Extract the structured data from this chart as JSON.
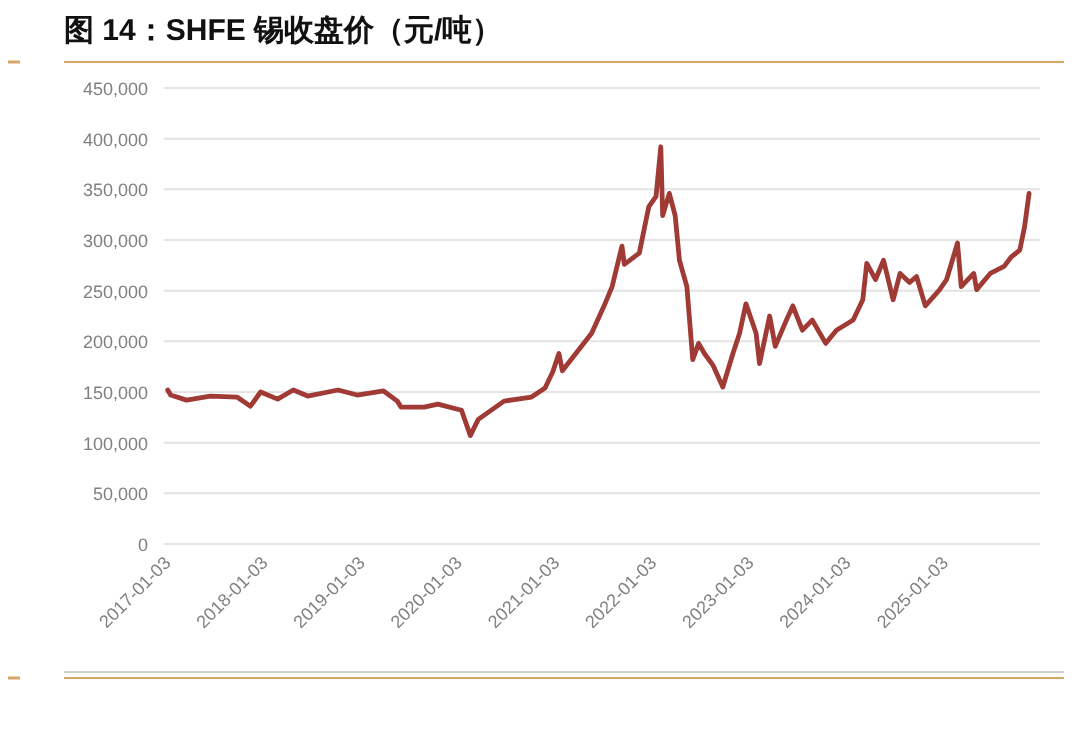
{
  "chart_data": {
    "type": "line",
    "title": "图 14：SHFE 锡收盘价（元/吨）",
    "x": [
      "2017-01-03",
      "2017-01-14",
      "2017-03-15",
      "2017-06-12",
      "2017-09-20",
      "2017-11-10",
      "2017-12-18",
      "2018-02-20",
      "2018-04-20",
      "2018-06-13",
      "2018-10-05",
      "2018-12-16",
      "2019-03-25",
      "2019-05-16",
      "2019-05-30",
      "2019-08-25",
      "2019-10-15",
      "2020-01-12",
      "2020-02-14",
      "2020-03-15",
      "2020-06-20",
      "2020-10-01",
      "2020-11-21",
      "2020-12-20",
      "2021-01-12",
      "2021-01-25",
      "2021-05-15",
      "2021-07-01",
      "2021-07-31",
      "2021-09-06",
      "2021-09-15",
      "2021-11-10",
      "2021-12-16",
      "2022-01-12",
      "2022-01-30",
      "2022-02-06",
      "2022-03-03",
      "2022-03-25",
      "2022-04-10",
      "2022-05-08",
      "2022-05-30",
      "2022-06-21",
      "2022-07-13",
      "2022-08-15",
      "2022-09-20",
      "2022-10-28",
      "2022-11-22",
      "2022-12-16",
      "2023-01-23",
      "2023-02-05",
      "2023-03-15",
      "2023-04-05",
      "2023-05-12",
      "2023-06-10",
      "2023-07-16",
      "2023-08-22",
      "2023-10-12",
      "2023-11-21",
      "2024-01-23",
      "2024-02-28",
      "2024-03-14",
      "2024-04-16",
      "2024-05-16",
      "2024-06-21",
      "2024-07-17",
      "2024-08-22",
      "2024-09-17",
      "2024-10-20",
      "2024-12-13",
      "2025-01-08",
      "2025-02-18",
      "2025-03-04",
      "2025-04-20",
      "2025-05-01",
      "2025-06-21",
      "2025-08-12",
      "2025-09-07",
      "2025-10-10",
      "2025-10-28",
      "2025-11-14"
    ],
    "series": [
      {
        "color": "#a03a35",
        "values": [
          152000,
          147000,
          142000,
          146000,
          145000,
          136000,
          150000,
          143000,
          152000,
          146000,
          152000,
          147000,
          151000,
          141000,
          135000,
          135000,
          138000,
          132000,
          107000,
          123000,
          141000,
          145000,
          154000,
          170000,
          188000,
          171000,
          208000,
          235000,
          254000,
          294000,
          276000,
          287000,
          333000,
          343000,
          392000,
          324000,
          346000,
          324000,
          280000,
          254000,
          182000,
          198000,
          188000,
          176000,
          155000,
          188000,
          208000,
          237000,
          208000,
          178000,
          225000,
          195000,
          218000,
          235000,
          211000,
          221000,
          198000,
          211000,
          221000,
          241000,
          277000,
          261000,
          280000,
          241000,
          267000,
          258000,
          264000,
          235000,
          251000,
          261000,
          297000,
          254000,
          267000,
          251000,
          267000,
          274000,
          283000,
          290000,
          313000,
          346000
        ]
      }
    ],
    "xlim": [
      "2016-12-20",
      "2025-12-25"
    ],
    "xticks": [
      {
        "value": "2017-01-03",
        "label": "2017-01-03"
      },
      {
        "value": "2018-01-03",
        "label": "2018-01-03"
      },
      {
        "value": "2019-01-03",
        "label": "2019-01-03"
      },
      {
        "value": "2020-01-03",
        "label": "2020-01-03"
      },
      {
        "value": "2021-01-03",
        "label": "2021-01-03"
      },
      {
        "value": "2022-01-03",
        "label": "2022-01-03"
      },
      {
        "value": "2023-01-03",
        "label": "2023-01-03"
      },
      {
        "value": "2024-01-03",
        "label": "2024-01-03"
      },
      {
        "value": "2025-01-03",
        "label": "2025-01-03"
      }
    ],
    "ylim": [
      0,
      450000
    ],
    "yticks": [
      0,
      {
        "value": 50000,
        "label": "50,000"
      },
      {
        "value": 100000,
        "label": "100,000"
      },
      {
        "value": 150000,
        "label": "150,000"
      },
      {
        "value": 200000,
        "label": "200,000"
      },
      {
        "value": 250000,
        "label": "250,000"
      },
      {
        "value": 300000,
        "label": "300,000"
      },
      {
        "value": 350000,
        "label": "350,000"
      },
      {
        "value": 400000,
        "label": "400,000"
      },
      {
        "value": 450000,
        "label": "450,000"
      }
    ],
    "grid": "y",
    "line_style": "solid",
    "marker": "none"
  }
}
